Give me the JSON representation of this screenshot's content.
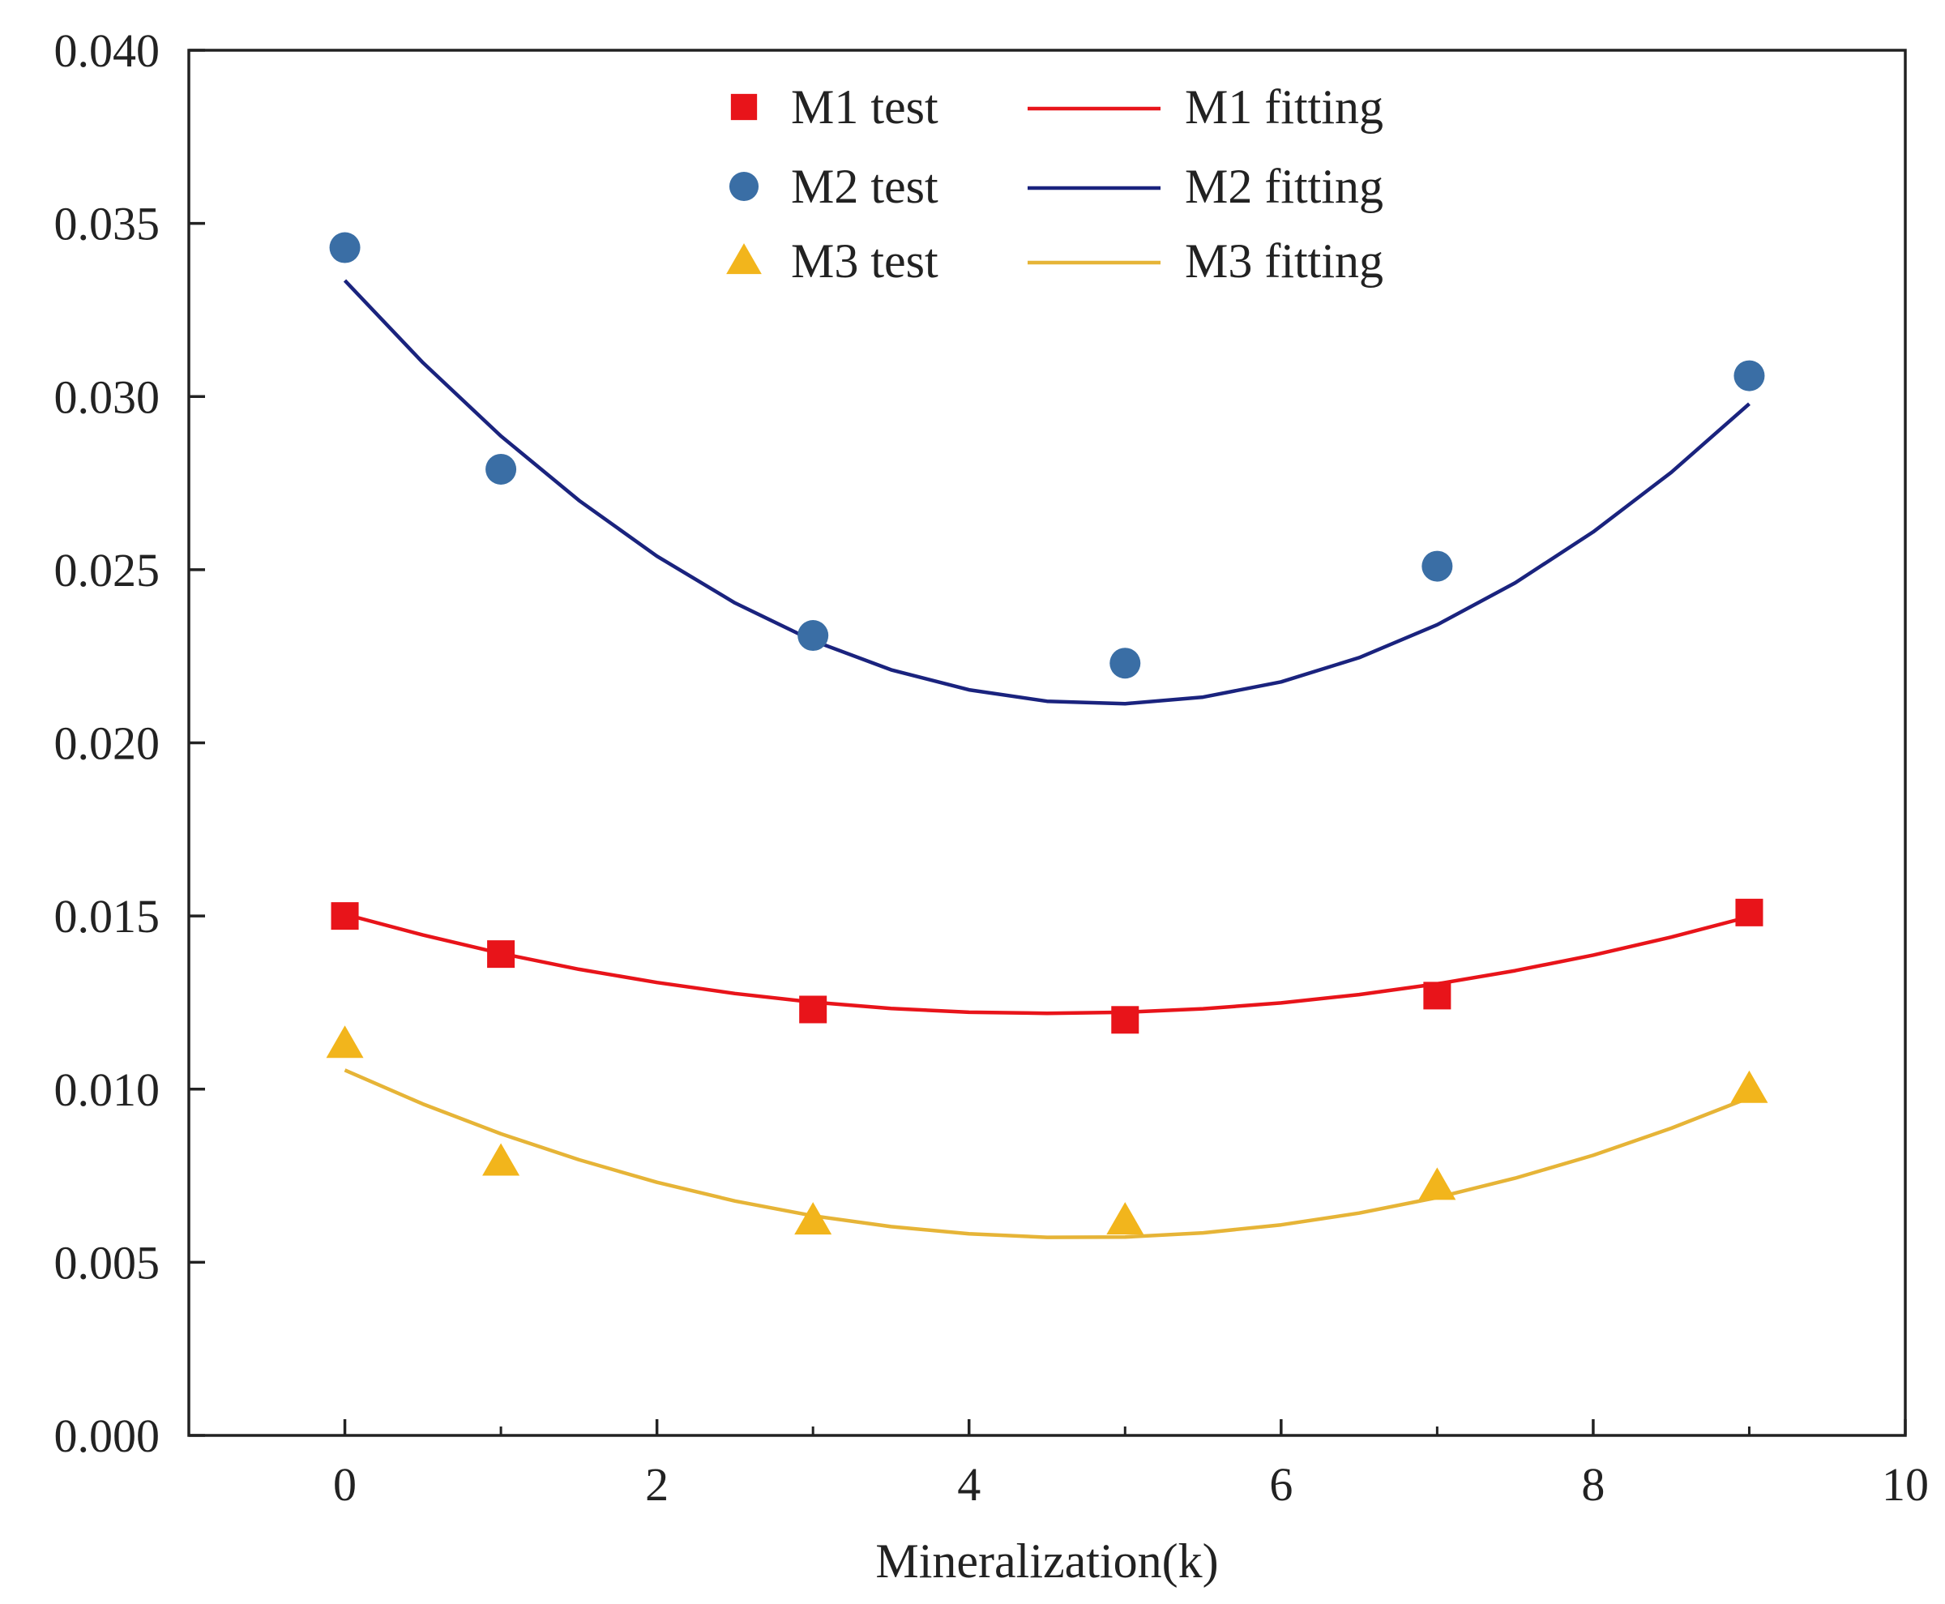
{
  "chart_data": {
    "type": "scatter",
    "title": "",
    "xlabel": "Mineralization(k)",
    "ylabel": "",
    "xlim": [
      -1,
      10
    ],
    "ylim": [
      0,
      0.04
    ],
    "x_ticks": [
      0,
      2,
      4,
      6,
      8,
      10
    ],
    "x_tick_labels": [
      "0",
      "2",
      "4",
      "6",
      "8",
      "10"
    ],
    "x_minor_ticks": [
      1,
      3,
      5,
      7,
      9
    ],
    "y_ticks": [
      0,
      0.005,
      0.01,
      0.015,
      0.02,
      0.025,
      0.03,
      0.035,
      0.04
    ],
    "y_tick_labels": [
      "0.000",
      "0.005",
      "0.010",
      "0.015",
      "0.020",
      "0.025",
      "0.030",
      "0.035",
      "0.040"
    ],
    "grid": false,
    "legend_position": "top-center",
    "series": [
      {
        "name": "M1 test",
        "kind": "points",
        "marker": "square",
        "color": "#e8141a",
        "x": [
          0,
          1,
          3,
          5,
          7,
          9
        ],
        "y": [
          0.015,
          0.0139,
          0.0123,
          0.012,
          0.0127,
          0.0151
        ]
      },
      {
        "name": "M2 test",
        "kind": "points",
        "marker": "circle",
        "color": "#3a6ea5",
        "x": [
          0,
          1,
          3,
          5,
          7,
          9
        ],
        "y": [
          0.0343,
          0.0279,
          0.0231,
          0.0223,
          0.0251,
          0.0306
        ]
      },
      {
        "name": "M3 test",
        "kind": "points",
        "marker": "triangle",
        "color": "#f2b51c",
        "x": [
          0,
          1,
          3,
          5,
          7,
          9
        ],
        "y": [
          0.0113,
          0.0079,
          0.0062,
          0.0062,
          0.0072,
          0.01
        ]
      },
      {
        "name": "M1 fitting",
        "kind": "line",
        "color": "#e8141a",
        "x": [
          0,
          0.5,
          1,
          1.5,
          2,
          2.5,
          3,
          3.5,
          4,
          4.5,
          5,
          5.5,
          6,
          6.5,
          7,
          7.5,
          8,
          8.5,
          9
        ],
        "y": [
          0.01505,
          0.01445,
          0.01392,
          0.01346,
          0.01308,
          0.01276,
          0.01251,
          0.01233,
          0.01222,
          0.01219,
          0.01222,
          0.01232,
          0.01249,
          0.01273,
          0.01304,
          0.01342,
          0.01387,
          0.01439,
          0.01498
        ]
      },
      {
        "name": "M2 fitting",
        "kind": "line",
        "color": "#1a237e",
        "x": [
          0,
          0.5,
          1,
          1.5,
          2,
          2.5,
          3,
          3.5,
          4,
          4.5,
          5,
          5.5,
          6,
          6.5,
          7,
          7.5,
          8,
          8.5,
          9
        ],
        "y": [
          0.03335,
          0.03098,
          0.02886,
          0.027,
          0.02539,
          0.02404,
          0.02295,
          0.02211,
          0.02153,
          0.0212,
          0.02113,
          0.02132,
          0.02176,
          0.02246,
          0.02341,
          0.02462,
          0.02609,
          0.02781,
          0.02979
        ]
      },
      {
        "name": "M3 fitting",
        "kind": "line",
        "color": "#e6b437",
        "x": [
          0,
          0.5,
          1,
          1.5,
          2,
          2.5,
          3,
          3.5,
          4,
          4.5,
          5,
          5.5,
          6,
          6.5,
          7,
          7.5,
          8,
          8.5,
          9
        ],
        "y": [
          0.01055,
          0.00957,
          0.00871,
          0.00796,
          0.00731,
          0.00677,
          0.00634,
          0.00603,
          0.00582,
          0.00572,
          0.00573,
          0.00585,
          0.00608,
          0.00642,
          0.00687,
          0.00743,
          0.00809,
          0.00887,
          0.00975
        ]
      }
    ],
    "legend": {
      "columns": [
        [
          "M1 test",
          "M2 test",
          "M3 test"
        ],
        [
          "M1 fitting",
          "M2 fitting",
          "M3 fitting"
        ]
      ]
    }
  }
}
